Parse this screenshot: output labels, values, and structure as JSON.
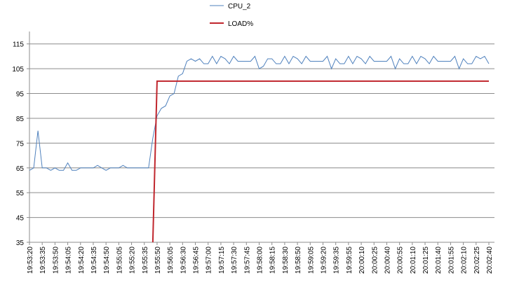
{
  "chart_data": {
    "type": "line",
    "categories": [
      "19:53:20",
      null,
      null,
      "19:53:35",
      null,
      null,
      "19:53:50",
      null,
      null,
      "19:54:05",
      null,
      null,
      "19:54:20",
      null,
      null,
      "19:54:35",
      null,
      null,
      "19:54:50",
      null,
      null,
      "19:55:05",
      null,
      null,
      "19:55:20",
      null,
      null,
      "19:55:35",
      null,
      null,
      "19:55:50",
      null,
      null,
      "19:56:05",
      null,
      null,
      "19:56:30",
      null,
      null,
      "19:56:45",
      null,
      null,
      "19:57:00",
      null,
      null,
      "19:57:15",
      null,
      null,
      "19:57:30",
      null,
      null,
      "19:57:45",
      null,
      null,
      "19:58:00",
      null,
      null,
      "19:58:15",
      null,
      null,
      "19:58:30",
      null,
      null,
      "19:58:50",
      null,
      null,
      "19:59:05",
      null,
      null,
      "19:59:20",
      null,
      null,
      "19:59:35",
      null,
      null,
      "19:59:55",
      null,
      null,
      "20:00:10",
      null,
      null,
      "20:00:25",
      null,
      null,
      "20:00:40",
      null,
      null,
      "20:00:55",
      null,
      null,
      "20:01:10",
      null,
      null,
      "20:01:25",
      null,
      null,
      "20:01:40",
      null,
      null,
      "20:01:55",
      null,
      null,
      "20:02:10",
      null,
      null,
      "20:02:25",
      null,
      null,
      "20:02:40"
    ],
    "series": [
      {
        "name": "CPU_2",
        "color": "#4f81bd",
        "values": [
          64,
          65,
          80,
          65,
          65,
          64,
          65,
          64,
          64,
          67,
          64,
          64,
          65,
          65,
          65,
          65,
          66,
          65,
          64,
          65,
          65,
          65,
          66,
          65,
          65,
          65,
          65,
          65,
          65,
          77,
          86,
          89,
          90,
          94,
          95,
          102,
          103,
          108,
          109,
          108,
          109,
          107,
          107,
          110,
          107,
          110,
          109,
          107,
          110,
          108,
          108,
          108,
          108,
          110,
          105,
          106,
          109,
          109,
          107,
          107,
          110,
          107,
          110,
          109,
          107,
          110,
          108,
          108,
          108,
          108,
          110,
          105,
          109,
          107,
          107,
          110,
          107,
          110,
          109,
          107,
          110,
          108,
          108,
          108,
          108,
          110,
          105,
          109,
          107,
          107,
          110,
          107,
          110,
          109,
          107,
          110,
          108,
          108,
          108,
          108,
          110,
          105,
          109,
          107,
          107,
          110,
          109,
          110,
          107
        ]
      },
      {
        "name": "LOAD%",
        "color": "#c0262d",
        "values": [
          null,
          null,
          null,
          null,
          null,
          null,
          null,
          null,
          null,
          null,
          null,
          null,
          null,
          null,
          null,
          null,
          null,
          null,
          null,
          null,
          null,
          null,
          null,
          null,
          null,
          null,
          null,
          null,
          null,
          35,
          100,
          100,
          100,
          100,
          100,
          100,
          100,
          100,
          100,
          100,
          100,
          100,
          100,
          100,
          100,
          100,
          100,
          100,
          100,
          100,
          100,
          100,
          100,
          100,
          100,
          100,
          100,
          100,
          100,
          100,
          100,
          100,
          100,
          100,
          100,
          100,
          100,
          100,
          100,
          100,
          100,
          100,
          100,
          100,
          100,
          100,
          100,
          100,
          100,
          100,
          100,
          100,
          100,
          100,
          100,
          100,
          100,
          100,
          100,
          100,
          100,
          100,
          100,
          100,
          100,
          100,
          100,
          100,
          100,
          100,
          100,
          100,
          100,
          100,
          100,
          100,
          100,
          100,
          100
        ]
      }
    ],
    "ylim": [
      35,
      120
    ],
    "yticks": [
      35,
      45,
      55,
      65,
      75,
      85,
      95,
      105,
      115
    ],
    "grid": true
  }
}
